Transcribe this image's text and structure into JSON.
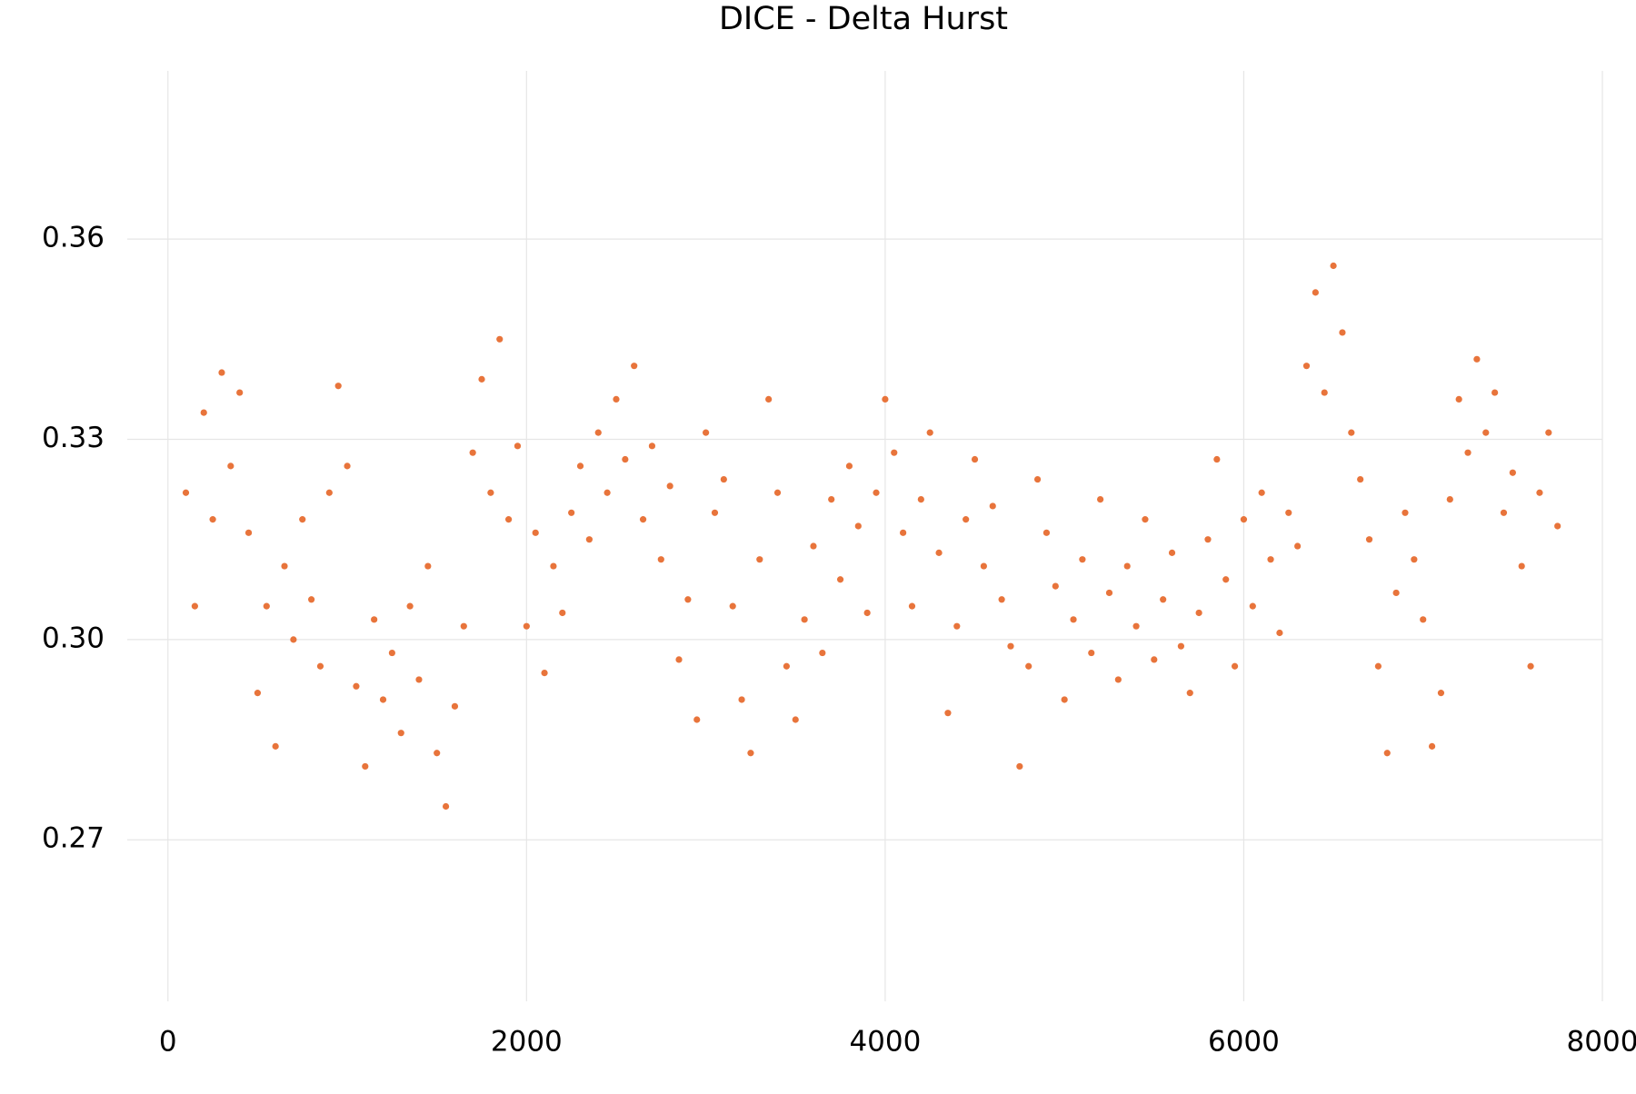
{
  "chart_data": {
    "type": "scatter",
    "title": "DICE - Delta Hurst",
    "color": "#e8743b",
    "grid": true,
    "xlim": [
      -227,
      8000
    ],
    "xticks": [
      0,
      2000,
      4000,
      6000,
      8000
    ],
    "ylim": [
      0.2458,
      0.3852
    ],
    "yticks": [
      {
        "value": 0.27,
        "label": "0.27"
      },
      {
        "value": 0.3,
        "label": "0.30"
      },
      {
        "value": 0.33,
        "label": "0.33"
      },
      {
        "value": 0.36,
        "label": "0.36"
      }
    ],
    "x": [
      100,
      150,
      200,
      250,
      300,
      350,
      400,
      450,
      500,
      550,
      600,
      650,
      700,
      750,
      800,
      850,
      900,
      950,
      1000,
      1050,
      1100,
      1150,
      1200,
      1250,
      1300,
      1350,
      1400,
      1450,
      1500,
      1550,
      1600,
      1650,
      1700,
      1750,
      1800,
      1850,
      1900,
      1950,
      2000,
      2050,
      2100,
      2150,
      2200,
      2250,
      2300,
      2350,
      2400,
      2450,
      2500,
      2550,
      2600,
      2650,
      2700,
      2750,
      2800,
      2850,
      2900,
      2950,
      3000,
      3050,
      3100,
      3150,
      3200,
      3250,
      3300,
      3350,
      3400,
      3450,
      3500,
      3550,
      3600,
      3650,
      3700,
      3750,
      3800,
      3850,
      3900,
      3950,
      4000,
      4050,
      4100,
      4150,
      4200,
      4250,
      4300,
      4350,
      4400,
      4450,
      4500,
      4550,
      4600,
      4650,
      4700,
      4750,
      4800,
      4850,
      4900,
      4950,
      5000,
      5050,
      5100,
      5150,
      5200,
      5250,
      5300,
      5350,
      5400,
      5450,
      5500,
      5550,
      5600,
      5650,
      5700,
      5750,
      5800,
      5850,
      5900,
      5950,
      6000,
      6050,
      6100,
      6150,
      6200,
      6250,
      6300,
      6350,
      6400,
      6450,
      6500,
      6550,
      6600,
      6650,
      6700,
      6750,
      6800,
      6850,
      6900,
      6950,
      7000,
      7050,
      7100,
      7150,
      7200,
      7250,
      7300,
      7350,
      7400,
      7450,
      7500,
      7550,
      7600,
      7650,
      7700,
      7750
    ],
    "values": [
      0.322,
      0.305,
      0.334,
      0.318,
      0.34,
      0.326,
      0.337,
      0.316,
      0.292,
      0.305,
      0.284,
      0.311,
      0.3,
      0.318,
      0.306,
      0.296,
      0.322,
      0.338,
      0.326,
      0.293,
      0.281,
      0.303,
      0.291,
      0.298,
      0.286,
      0.305,
      0.294,
      0.311,
      0.283,
      0.275,
      0.29,
      0.302,
      0.328,
      0.339,
      0.322,
      0.345,
      0.318,
      0.329,
      0.302,
      0.316,
      0.295,
      0.311,
      0.304,
      0.319,
      0.326,
      0.315,
      0.331,
      0.322,
      0.336,
      0.327,
      0.341,
      0.318,
      0.329,
      0.312,
      0.323,
      0.297,
      0.306,
      0.288,
      0.331,
      0.319,
      0.324,
      0.305,
      0.291,
      0.283,
      0.312,
      0.336,
      0.322,
      0.296,
      0.288,
      0.303,
      0.314,
      0.298,
      0.321,
      0.309,
      0.326,
      0.317,
      0.304,
      0.322,
      0.336,
      0.328,
      0.316,
      0.305,
      0.321,
      0.331,
      0.313,
      0.289,
      0.302,
      0.318,
      0.327,
      0.311,
      0.32,
      0.306,
      0.299,
      0.281,
      0.296,
      0.324,
      0.316,
      0.308,
      0.291,
      0.303,
      0.312,
      0.298,
      0.321,
      0.307,
      0.294,
      0.311,
      0.302,
      0.318,
      0.297,
      0.306,
      0.313,
      0.299,
      0.292,
      0.304,
      0.315,
      0.327,
      0.309,
      0.296,
      0.318,
      0.305,
      0.322,
      0.312,
      0.301,
      0.319,
      0.314,
      0.341,
      0.352,
      0.337,
      0.356,
      0.346,
      0.331,
      0.324,
      0.315,
      0.296,
      0.283,
      0.307,
      0.319,
      0.312,
      0.303,
      0.284,
      0.292,
      0.321,
      0.336,
      0.328,
      0.342,
      0.331,
      0.337,
      0.319,
      0.325,
      0.311,
      0.296,
      0.322,
      0.331,
      0.317
    ]
  }
}
